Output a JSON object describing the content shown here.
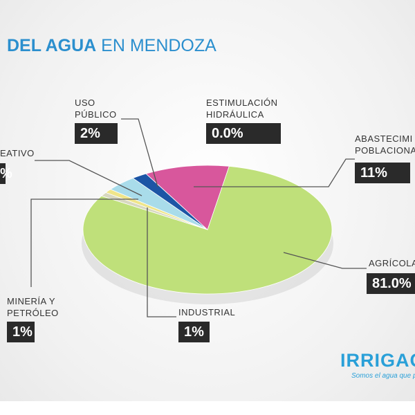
{
  "title_parts": [
    "DEL AGUA",
    "EN MENDOZA"
  ],
  "chart_data": {
    "type": "pie",
    "categories": [
      "AGRÍCOLA",
      "INDUSTRIAL",
      "MINERÍA Y PETRÓLEO",
      "EATIVO",
      "USO PÚBLICO",
      "ESTIMULACIÓN HIDRÁULICA",
      "ABASTECIMI POBLACIONA"
    ],
    "values": [
      81.0,
      1,
      1,
      4,
      2,
      0.0,
      11
    ],
    "value_labels": [
      "81.0%",
      "1%",
      "1%",
      "%",
      "2%",
      "0.0%",
      "11%"
    ],
    "colors": [
      "#bfe07a",
      "#d8d8c0",
      "#efe58a",
      "#a9dcea",
      "#1c55a5",
      "#999999",
      "#d8579c"
    ]
  },
  "logo": {
    "name": "IRRIGACI",
    "slogan": "Somos el agua que p"
  }
}
